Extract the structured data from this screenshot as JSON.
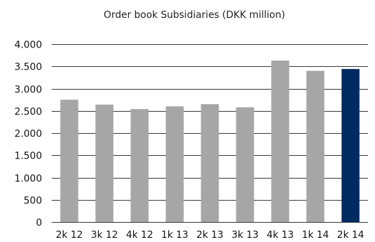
{
  "chart_data": {
    "type": "bar",
    "title": "Order book Subsidiaries (DKK million)",
    "xlabel": "",
    "ylabel": "",
    "categories": [
      "2k 12",
      "3k 12",
      "4k 12",
      "1k 13",
      "2k 13",
      "3k 13",
      "4k 13",
      "1k 14",
      "2k 14"
    ],
    "values": [
      2750,
      2640,
      2540,
      2600,
      2650,
      2580,
      3630,
      3400,
      3440
    ],
    "ylim": [
      0,
      4000
    ],
    "yticks": [
      0,
      500,
      1000,
      1500,
      2000,
      2500,
      3000,
      3500,
      4000
    ],
    "ytick_labels": [
      "0",
      "500",
      "1.000",
      "1.500",
      "2.000",
      "2.500",
      "3.000",
      "3.500",
      "4.000"
    ],
    "grid": true,
    "legend": "none",
    "colors": {
      "default_bar": "#a6a6a6",
      "highlight_bar": "#002b60",
      "gridline": "#333333"
    },
    "highlight_index": 8
  }
}
